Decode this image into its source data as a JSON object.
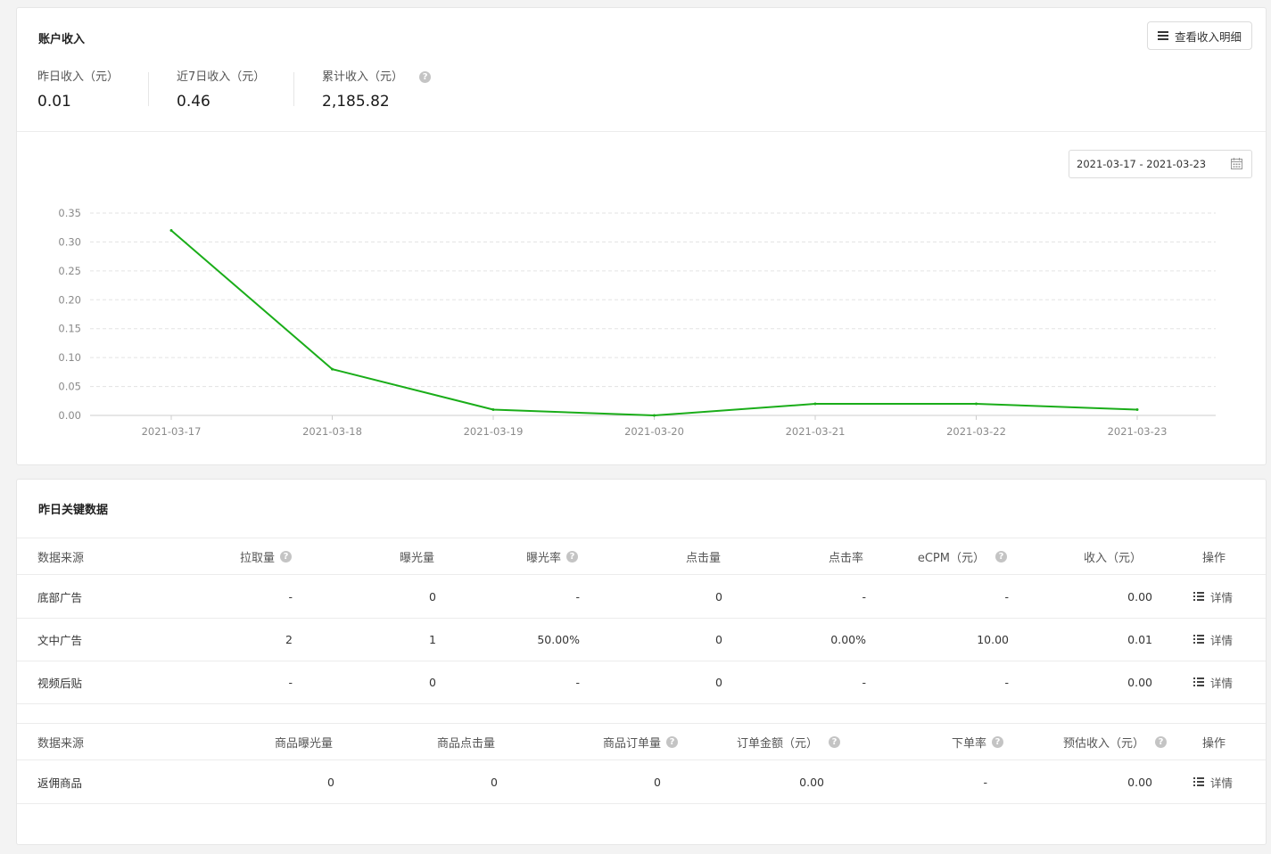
{
  "income": {
    "title": "账户收入",
    "detail_button": "查看收入明细",
    "stats": [
      {
        "label": "昨日收入（元）",
        "value": "0.01"
      },
      {
        "label": "近7日收入（元）",
        "value": "0.46"
      },
      {
        "label": "累计收入（元）",
        "value": "2,185.82"
      }
    ],
    "date_range": "2021-03-17 - 2021-03-23"
  },
  "chart_data": {
    "type": "line",
    "x": [
      "2021-03-17",
      "2021-03-18",
      "2021-03-19",
      "2021-03-20",
      "2021-03-21",
      "2021-03-22",
      "2021-03-23"
    ],
    "series": [
      {
        "values": [
          0.32,
          0.08,
          0.01,
          0.0,
          0.02,
          0.02,
          0.01
        ],
        "color": "#1aad19"
      }
    ],
    "yticks": [
      "0.35",
      "0.30",
      "0.25",
      "0.20",
      "0.15",
      "0.10",
      "0.05",
      "0.00"
    ],
    "ylim": [
      0,
      0.35
    ],
    "grid": true
  },
  "key_data": {
    "title": "昨日关键数据",
    "ad_table": {
      "headers": [
        "数据来源",
        "拉取量",
        "曝光量",
        "曝光率",
        "点击量",
        "点击率",
        "eCPM（元）",
        "收入（元）",
        "操作"
      ],
      "rows": [
        [
          "底部广告",
          "-",
          "0",
          "-",
          "0",
          "-",
          "-",
          "0.00",
          "详情"
        ],
        [
          "文中广告",
          "2",
          "1",
          "50.00%",
          "0",
          "0.00%",
          "10.00",
          "0.01",
          "详情"
        ],
        [
          "视频后贴",
          "-",
          "0",
          "-",
          "0",
          "-",
          "-",
          "0.00",
          "详情"
        ]
      ]
    },
    "goods_table": {
      "headers": [
        "数据来源",
        "商品曝光量",
        "商品点击量",
        "商品订单量",
        "订单金额（元）",
        "下单率",
        "预估收入（元）",
        "操作"
      ],
      "rows": [
        [
          "返佣商品",
          "0",
          "0",
          "0",
          "0.00",
          "-",
          "0.00",
          "详情"
        ]
      ]
    }
  }
}
